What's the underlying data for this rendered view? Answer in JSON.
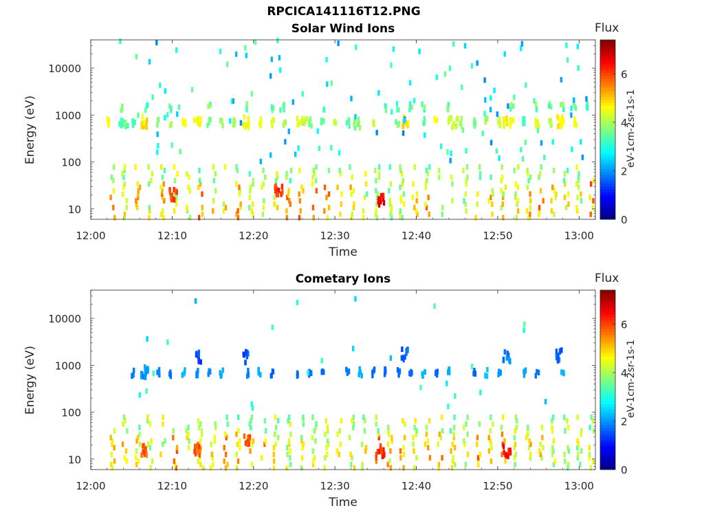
{
  "figure_title": "RPCICA141116T12.PNG",
  "chart_data": [
    {
      "type": "heatmap",
      "title": "Solar Wind Ions",
      "xlabel": "Time",
      "ylabel": "Energy (eV)",
      "x_range": [
        "12:00",
        "13:02"
      ],
      "x_ticks": [
        "12:00",
        "12:10",
        "12:20",
        "12:30",
        "12:40",
        "12:50",
        "13:00"
      ],
      "y_scale": "log",
      "y_range": [
        6,
        40000
      ],
      "y_ticks": [
        "10",
        "100",
        "1000",
        "10000"
      ],
      "colorbar": {
        "label": "Flux",
        "unit_label": "eV-1cm-2sr-1s-1",
        "range": [
          0,
          7.4
        ],
        "ticks": [
          "0",
          "2",
          "4",
          "6"
        ],
        "colormap": "jet"
      },
      "features": [
        {
          "time": "12:04",
          "energy_eV": 700,
          "flux": 3.5
        },
        {
          "time": "12:06.5",
          "energy_eV": 700,
          "flux": 4.8
        },
        {
          "time": "12:13",
          "energy_eV": 700,
          "flux": 4.5
        },
        {
          "time": "12:19",
          "energy_eV": 700,
          "flux": 4.5
        },
        {
          "time": "12:26",
          "energy_eV": 700,
          "flux": 4.2
        },
        {
          "time": "12:32.5",
          "energy_eV": 700,
          "flux": 3.8
        },
        {
          "time": "12:38.5",
          "energy_eV": 700,
          "flux": 5.0
        },
        {
          "time": "12:44.5",
          "energy_eV": 700,
          "flux": 4.3
        },
        {
          "time": "12:51",
          "energy_eV": 700,
          "flux": 4.6
        },
        {
          "time": "12:57.5",
          "energy_eV": 700,
          "flux": 4.7
        },
        {
          "time": "12:10",
          "energy_eV": 20,
          "flux": 6.0
        },
        {
          "time": "12:23",
          "energy_eV": 25,
          "flux": 6.2
        },
        {
          "time": "12:35.5",
          "energy_eV": 15,
          "flux": 6.5
        }
      ]
    },
    {
      "type": "heatmap",
      "title": "Cometary Ions",
      "xlabel": "Time",
      "ylabel": "Energy (eV)",
      "x_range": [
        "12:00",
        "13:02"
      ],
      "x_ticks": [
        "12:00",
        "12:10",
        "12:20",
        "12:30",
        "12:40",
        "12:50",
        "13:00"
      ],
      "y_scale": "log",
      "y_range": [
        6,
        40000
      ],
      "y_ticks": [
        "10",
        "100",
        "1000",
        "10000"
      ],
      "colorbar": {
        "label": "Flux",
        "unit_label": "eV-1cm-2sr-1s-1",
        "range": [
          0,
          7.4
        ],
        "ticks": [
          "0",
          "2",
          "4",
          "6"
        ],
        "colormap": "jet"
      },
      "features": [
        {
          "time": "12:06.5",
          "energy_eV": 700,
          "flux": 2.0
        },
        {
          "time": "12:13",
          "energy_eV": 1500,
          "flux": 1.5
        },
        {
          "time": "12:19",
          "energy_eV": 1500,
          "flux": 1.5
        },
        {
          "time": "12:38.5",
          "energy_eV": 1700,
          "flux": 1.6
        },
        {
          "time": "12:51",
          "energy_eV": 1500,
          "flux": 1.8
        },
        {
          "time": "12:57.5",
          "energy_eV": 1600,
          "flux": 1.7
        },
        {
          "time": "12:06.5",
          "energy_eV": 15,
          "flux": 5.8
        },
        {
          "time": "12:13",
          "energy_eV": 15,
          "flux": 5.8
        },
        {
          "time": "12:19",
          "energy_eV": 25,
          "flux": 6.0
        },
        {
          "time": "12:35.5",
          "energy_eV": 15,
          "flux": 6.2
        },
        {
          "time": "12:51",
          "energy_eV": 15,
          "flux": 6.3
        }
      ]
    }
  ]
}
